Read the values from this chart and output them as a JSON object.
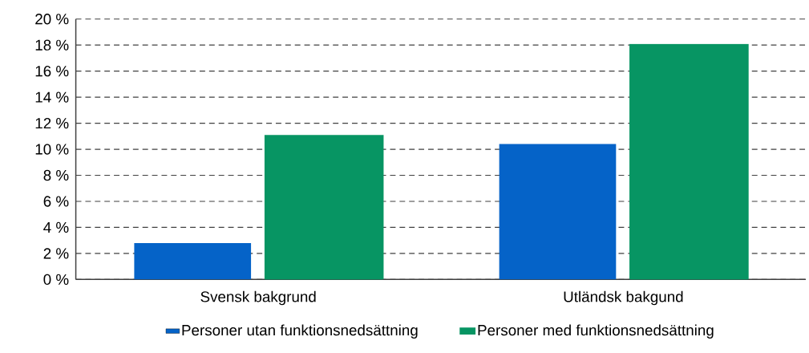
{
  "chart_data": {
    "type": "bar",
    "categories": [
      "Svensk bakgrund",
      "Utländsk bakgund"
    ],
    "series": [
      {
        "name": "Personer utan funktionsnedsättning",
        "color": "#0563c8",
        "values": [
          2.8,
          10.4
        ]
      },
      {
        "name": "Personer med funktionsnedsättning",
        "color": "#079563",
        "values": [
          11.0,
          18.0
        ]
      }
    ],
    "ylim": [
      0,
      20
    ],
    "yticks": [
      {
        "value": 0,
        "label": "0 %"
      },
      {
        "value": 2,
        "label": "2 %"
      },
      {
        "value": 4,
        "label": "4 %"
      },
      {
        "value": 6,
        "label": "6 %"
      },
      {
        "value": 8,
        "label": "8 %"
      },
      {
        "value": 10,
        "label": "10 %"
      },
      {
        "value": 12,
        "label": "12 %"
      },
      {
        "value": 14,
        "label": "14 %"
      },
      {
        "value": 16,
        "label": "16 %"
      },
      {
        "value": 18,
        "label": "18 %"
      },
      {
        "value": 20,
        "label": "20 %"
      }
    ],
    "grid": "y",
    "legend": "bottom"
  }
}
